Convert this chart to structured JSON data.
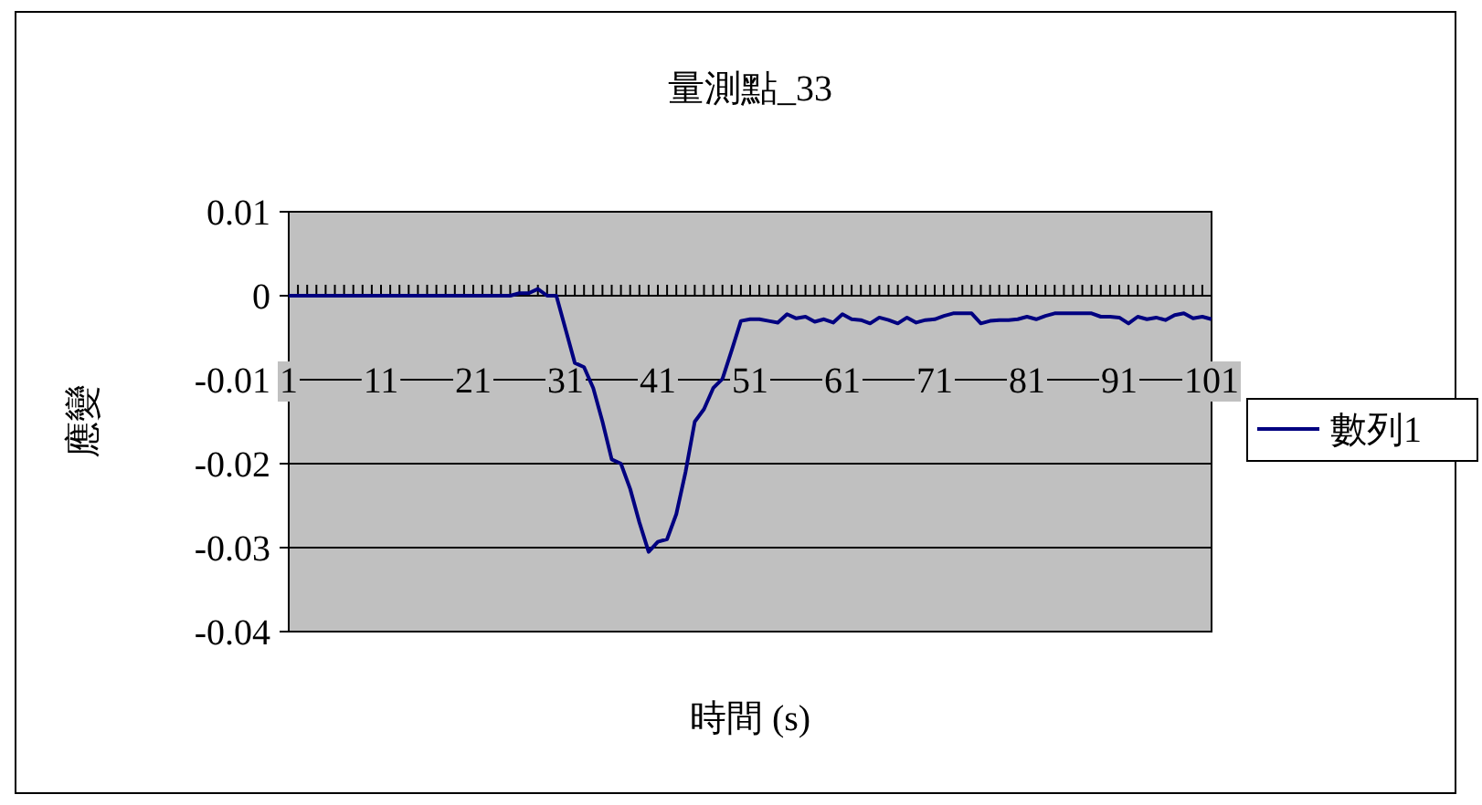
{
  "chart_data": {
    "type": "line",
    "title": "量測點_33",
    "xlabel": "時間 (s)",
    "ylabel": "應變",
    "categories": [
      "1",
      null,
      null,
      null,
      null,
      null,
      null,
      null,
      null,
      null,
      "11",
      null,
      null,
      null,
      null,
      null,
      null,
      null,
      null,
      null,
      "21",
      null,
      null,
      null,
      null,
      null,
      null,
      null,
      null,
      null,
      "31",
      null,
      null,
      null,
      null,
      null,
      null,
      null,
      null,
      null,
      "41",
      null,
      null,
      null,
      null,
      null,
      null,
      null,
      null,
      null,
      "51",
      null,
      null,
      null,
      null,
      null,
      null,
      null,
      null,
      null,
      "61",
      null,
      null,
      null,
      null,
      null,
      null,
      null,
      null,
      null,
      "71",
      null,
      null,
      null,
      null,
      null,
      null,
      null,
      null,
      null,
      "81",
      null,
      null,
      null,
      null,
      null,
      null,
      null,
      null,
      null,
      "91",
      null,
      null,
      null,
      null,
      null,
      null,
      null,
      null,
      null,
      "101"
    ],
    "series": [
      {
        "name": "數列1",
        "color": "#000080",
        "values": [
          0,
          0,
          0,
          0,
          0,
          0,
          0,
          0,
          0,
          0,
          0,
          0,
          0,
          0,
          0,
          0,
          0,
          0,
          0,
          0,
          0,
          0,
          0,
          0,
          0,
          0.0003,
          0.0003,
          0.0008,
          0,
          0,
          -0.004,
          -0.008,
          -0.0085,
          -0.011,
          -0.015,
          -0.0195,
          -0.02,
          -0.023,
          -0.027,
          -0.0305,
          -0.0293,
          -0.029,
          -0.026,
          -0.021,
          -0.015,
          -0.0135,
          -0.011,
          -0.0099,
          -0.0065,
          -0.003,
          -0.0028,
          -0.0028,
          -0.003,
          -0.0032,
          -0.0022,
          -0.0027,
          -0.0025,
          -0.0031,
          -0.0028,
          -0.0032,
          -0.0022,
          -0.0028,
          -0.0029,
          -0.0033,
          -0.0026,
          -0.0029,
          -0.0033,
          -0.0026,
          -0.0032,
          -0.0029,
          -0.0028,
          -0.0024,
          -0.0021,
          -0.0021,
          -0.0021,
          -0.0033,
          -0.003,
          -0.0029,
          -0.0029,
          -0.0028,
          -0.0025,
          -0.0028,
          -0.0024,
          -0.0021,
          -0.0021,
          -0.0021,
          -0.0021,
          -0.0021,
          -0.0025,
          -0.0025,
          -0.0026,
          -0.0033,
          -0.0025,
          -0.0028,
          -0.0026,
          -0.0029,
          -0.0023,
          -0.0021,
          -0.0027,
          -0.0025,
          -0.0028
        ]
      }
    ],
    "ylim": [
      -0.04,
      0.01
    ],
    "yticks": [
      0.01,
      0,
      -0.01,
      -0.02,
      -0.03,
      -0.04
    ],
    "grid": "y",
    "legend": "right"
  }
}
